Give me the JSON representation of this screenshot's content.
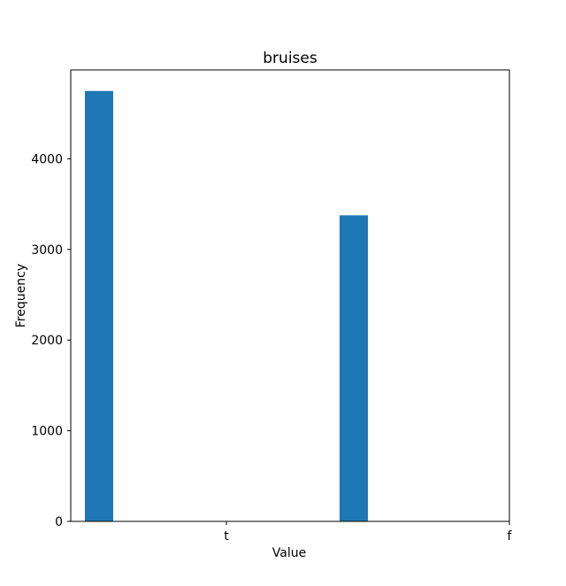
{
  "chart_data": {
    "type": "bar",
    "title": "bruises",
    "xlabel": "Value",
    "ylabel": "Frequency",
    "x_ticks": [
      "t",
      "f"
    ],
    "y_ticks": [
      0,
      1000,
      2000,
      3000,
      4000
    ],
    "ylim": [
      0,
      5000
    ],
    "grid": false,
    "bars": [
      {
        "label": "t",
        "value": 4748
      },
      {
        "label": "f",
        "value": 3376
      }
    ],
    "bar_color": "#1f77b4"
  }
}
